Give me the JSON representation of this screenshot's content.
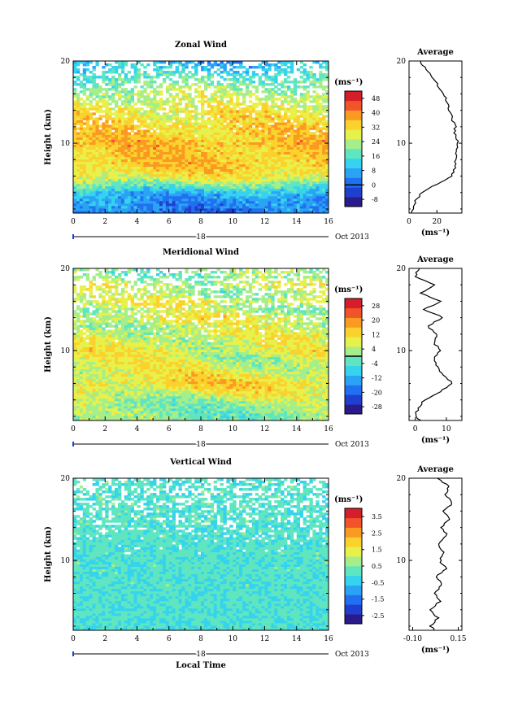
{
  "chart_data": [
    {
      "type": "heatmap",
      "title": "Zonal Wind",
      "ylabel": "Height (km)",
      "ylim": [
        1.5,
        20
      ],
      "yticks": [
        10,
        20
      ],
      "xlim": [
        0,
        16
      ],
      "xticks": [
        "0",
        "2",
        "4",
        "6",
        "8",
        "10",
        "12",
        "14",
        "16"
      ],
      "day_label": "18",
      "date_label": "Oct 2013",
      "colorbar": {
        "unit": "(ms⁻¹)",
        "tick_labels": [
          "-8",
          "0",
          "8",
          "16",
          "24",
          "32",
          "40",
          "48"
        ],
        "range": [
          -12,
          52
        ],
        "zero_line": 0
      },
      "profile_height_km": [
        1.5,
        3,
        4,
        5,
        6,
        7,
        8,
        9,
        10,
        11,
        12,
        13,
        14,
        15,
        16,
        17,
        18,
        19,
        20
      ],
      "profile_value": [
        2,
        5,
        9,
        20,
        30,
        33,
        34,
        34,
        35,
        33,
        33,
        31,
        29,
        27,
        25,
        21,
        17,
        12,
        8
      ],
      "average": {
        "title": "Average",
        "xlabel": "(ms⁻¹)",
        "xticks": [
          "0",
          "20"
        ],
        "xlim": [
          0,
          38
        ],
        "yticks": [
          10,
          20
        ]
      }
    },
    {
      "type": "heatmap",
      "title": "Meridional Wind",
      "ylabel": "Height (km)",
      "ylim": [
        1.5,
        20
      ],
      "yticks": [
        10,
        20
      ],
      "xlim": [
        0,
        16
      ],
      "xticks": [
        "0",
        "2",
        "4",
        "6",
        "8",
        "10",
        "12",
        "14",
        "16"
      ],
      "day_label": "18",
      "date_label": "Oct 2013",
      "colorbar": {
        "unit": "(ms⁻¹)",
        "tick_labels": [
          "-28",
          "-20",
          "-12",
          "-4",
          "4",
          "12",
          "20",
          "28"
        ],
        "range": [
          -32,
          32
        ],
        "zero_line": 0
      },
      "profile_height_km": [
        1.5,
        2,
        3,
        4,
        5,
        6,
        7,
        8,
        9,
        10,
        11,
        12,
        13,
        14,
        15,
        16,
        17,
        18,
        19,
        20
      ],
      "profile_value": [
        2,
        0,
        1,
        3,
        8,
        12,
        9,
        7,
        6,
        8,
        6,
        7,
        4,
        9,
        3,
        8,
        2,
        6,
        0,
        1
      ],
      "average": {
        "title": "Average",
        "xlabel": "(ms⁻¹)",
        "xticks": [
          "0",
          "10"
        ],
        "xlim": [
          -2,
          15
        ],
        "yticks": [
          10,
          20
        ]
      }
    },
    {
      "type": "heatmap",
      "title": "Vertical Wind",
      "ylabel": "Height (km)",
      "xlabel": "Local Time",
      "ylim": [
        1.5,
        20
      ],
      "yticks": [
        10,
        20
      ],
      "xlim": [
        0,
        16
      ],
      "xticks": [
        "0",
        "2",
        "4",
        "6",
        "8",
        "10",
        "12",
        "14",
        "16"
      ],
      "day_label": "18",
      "date_label": "Oct 2013",
      "colorbar": {
        "unit": "(ms⁻¹)",
        "tick_labels": [
          "-2.5",
          "-1.5",
          "-0.5",
          "0.5",
          "1.5",
          "2.5",
          "3.5"
        ],
        "range": [
          -3,
          4
        ],
        "zero_line": null
      },
      "profile_height_km": [
        1.5,
        2,
        3,
        4,
        5,
        6,
        7,
        8,
        9,
        10,
        11,
        12,
        13,
        14,
        15,
        16,
        17,
        18,
        19,
        20
      ],
      "profile_value": [
        0.02,
        0.0,
        0.04,
        -0.01,
        0.05,
        0.02,
        0.06,
        0.03,
        0.08,
        0.05,
        0.07,
        0.04,
        0.09,
        0.06,
        0.1,
        0.07,
        0.12,
        0.08,
        0.1,
        0.04
      ],
      "average": {
        "title": "Average",
        "xlabel": "(ms⁻¹)",
        "xticks": [
          "-0.10",
          "0.15"
        ],
        "xlim": [
          -0.12,
          0.17
        ],
        "yticks": [
          10,
          20
        ]
      }
    }
  ],
  "palette": [
    "#2a1a8c",
    "#1f3fd0",
    "#2170f0",
    "#2aa3f5",
    "#35d3ee",
    "#5fe6c0",
    "#a6ee8a",
    "#e8f04a",
    "#fbd22d",
    "#fb9a22",
    "#f2542a",
    "#d61e2a"
  ]
}
